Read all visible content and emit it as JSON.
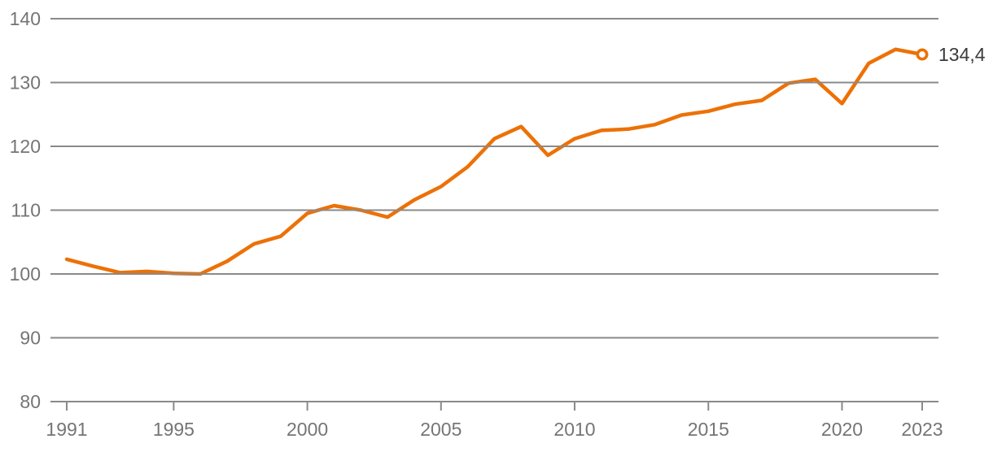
{
  "chart_data": {
    "type": "line",
    "title": "",
    "xlabel": "",
    "ylabel": "",
    "x": [
      1991,
      1992,
      1993,
      1994,
      1995,
      1996,
      1997,
      1998,
      1999,
      2000,
      2001,
      2002,
      2003,
      2004,
      2005,
      2006,
      2007,
      2008,
      2009,
      2010,
      2011,
      2012,
      2013,
      2014,
      2015,
      2016,
      2017,
      2018,
      2019,
      2020,
      2021,
      2022,
      2023
    ],
    "values": [
      102.3,
      101.2,
      100.2,
      100.4,
      100.1,
      100.0,
      102.0,
      104.7,
      105.9,
      109.5,
      110.7,
      110.0,
      108.9,
      111.6,
      113.7,
      116.8,
      121.2,
      123.1,
      118.6,
      121.2,
      122.5,
      122.7,
      123.4,
      124.9,
      125.5,
      126.6,
      127.2,
      129.9,
      130.5,
      126.7,
      133.0,
      135.2,
      134.4
    ],
    "ylim": [
      80,
      140
    ],
    "y_ticks": [
      140,
      130,
      120,
      110,
      100,
      90,
      80
    ],
    "x_tick_years": [
      1991,
      1995,
      2000,
      2005,
      2010,
      2015,
      2020,
      2023
    ],
    "last_value_label": "134,4",
    "grid": "horizontal-only",
    "legend": "none",
    "colors": {
      "line": "#EC7107",
      "grid": "#8A8A8A",
      "axis_text": "#757575",
      "value_label": "#3B3B3B",
      "marker_fill": "#FFFFFF"
    }
  }
}
